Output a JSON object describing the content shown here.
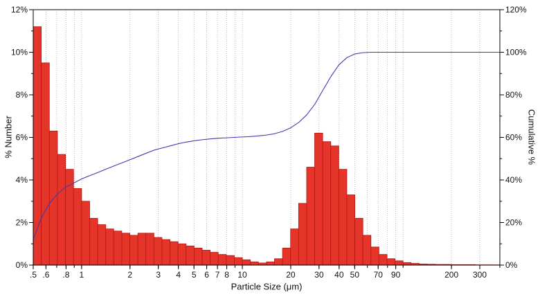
{
  "chart_data": {
    "type": "bar",
    "subtype": "histogram-with-cumulative-line",
    "title": "",
    "xlabel": "Particle Size (μm)",
    "ylabel_left": "% Number",
    "ylabel_right": "Cumulative %",
    "x_scale": "log",
    "xlim": [
      0.5,
      400
    ],
    "ylim_left": [
      0,
      12
    ],
    "ylim_right": [
      0,
      120
    ],
    "grid": {
      "vertical_minor_dotted": true,
      "horizontal": false
    },
    "legend_position": "none",
    "x_ticks": [
      {
        "v": 0.5,
        "label": ".5"
      },
      {
        "v": 0.6,
        "label": ".6"
      },
      {
        "v": 0.8,
        "label": ".8"
      },
      {
        "v": 1,
        "label": "1"
      },
      {
        "v": 2,
        "label": "2"
      },
      {
        "v": 3,
        "label": "3"
      },
      {
        "v": 4,
        "label": "4"
      },
      {
        "v": 5,
        "label": "5"
      },
      {
        "v": 6,
        "label": "6"
      },
      {
        "v": 7,
        "label": "7"
      },
      {
        "v": 8,
        "label": "8"
      },
      {
        "v": 10,
        "label": "10"
      },
      {
        "v": 20,
        "label": "20"
      },
      {
        "v": 30,
        "label": "30"
      },
      {
        "v": 40,
        "label": "40"
      },
      {
        "v": 50,
        "label": "50"
      },
      {
        "v": 70,
        "label": "70"
      },
      {
        "v": 90,
        "label": "90"
      },
      {
        "v": 200,
        "label": "200"
      },
      {
        "v": 300,
        "label": "300"
      }
    ],
    "y_left_ticks": [
      {
        "v": 0,
        "label": "0%"
      },
      {
        "v": 2,
        "label": "2%"
      },
      {
        "v": 4,
        "label": "4%"
      },
      {
        "v": 6,
        "label": "6%"
      },
      {
        "v": 8,
        "label": "8%"
      },
      {
        "v": 10,
        "label": "10%"
      },
      {
        "v": 12,
        "label": "12%"
      }
    ],
    "y_right_ticks": [
      {
        "v": 0,
        "label": "0%"
      },
      {
        "v": 20,
        "label": "20%"
      },
      {
        "v": 40,
        "label": "40%"
      },
      {
        "v": 60,
        "label": "60%"
      },
      {
        "v": 80,
        "label": "80%"
      },
      {
        "v": 100,
        "label": "100%"
      },
      {
        "v": 120,
        "label": "120%"
      }
    ],
    "bars": {
      "series_name": "% Number",
      "bin_edges": [
        0.5,
        0.561,
        0.63,
        0.707,
        0.794,
        0.891,
        1.0,
        1.122,
        1.259,
        1.413,
        1.585,
        1.778,
        1.995,
        2.239,
        2.512,
        2.818,
        3.162,
        3.548,
        3.981,
        4.467,
        5.012,
        5.623,
        6.31,
        7.079,
        7.943,
        8.913,
        10.0,
        11.22,
        12.59,
        14.13,
        15.85,
        17.78,
        19.95,
        22.39,
        25.12,
        28.18,
        31.62,
        35.48,
        39.81,
        44.67,
        50.12,
        56.23,
        63.1,
        70.79,
        79.43,
        89.13,
        100.0,
        112.2,
        125.9,
        141.3,
        158.5,
        177.8,
        199.5,
        223.9,
        251.2,
        281.8,
        316.2,
        354.8,
        398.1
      ],
      "values": [
        11.2,
        9.5,
        6.3,
        5.2,
        4.5,
        3.6,
        3.0,
        2.2,
        1.9,
        1.7,
        1.6,
        1.5,
        1.4,
        1.5,
        1.5,
        1.3,
        1.2,
        1.1,
        1.0,
        0.9,
        0.8,
        0.7,
        0.6,
        0.5,
        0.45,
        0.35,
        0.25,
        0.15,
        0.1,
        0.15,
        0.3,
        0.8,
        1.7,
        2.9,
        4.6,
        6.2,
        5.8,
        5.6,
        4.5,
        3.3,
        2.2,
        1.4,
        0.85,
        0.5,
        0.3,
        0.2,
        0.12,
        0.08,
        0.05,
        0.04,
        0.03,
        0.03,
        0.02,
        0.02,
        0.02,
        0.01,
        0.01,
        0.01
      ]
    },
    "cumulative": {
      "series_name": "Cumulative %",
      "points": [
        [
          0.5,
          12
        ],
        [
          0.56,
          22
        ],
        [
          0.63,
          29
        ],
        [
          0.71,
          33.5
        ],
        [
          0.79,
          36.5
        ],
        [
          0.89,
          38.5
        ],
        [
          1.0,
          40.5
        ],
        [
          1.12,
          42
        ],
        [
          1.26,
          43.5
        ],
        [
          1.41,
          45
        ],
        [
          1.58,
          46.5
        ],
        [
          1.78,
          48
        ],
        [
          2.0,
          49.5
        ],
        [
          2.24,
          51
        ],
        [
          2.51,
          52.5
        ],
        [
          2.82,
          54
        ],
        [
          3.16,
          55
        ],
        [
          3.55,
          56
        ],
        [
          3.98,
          57
        ],
        [
          4.47,
          57.8
        ],
        [
          5.01,
          58.4
        ],
        [
          5.62,
          58.9
        ],
        [
          6.31,
          59.3
        ],
        [
          7.08,
          59.6
        ],
        [
          7.94,
          59.8
        ],
        [
          8.91,
          60.0
        ],
        [
          10.0,
          60.2
        ],
        [
          11.2,
          60.4
        ],
        [
          12.6,
          60.7
        ],
        [
          14.1,
          61.1
        ],
        [
          15.8,
          61.7
        ],
        [
          17.8,
          62.8
        ],
        [
          20.0,
          64.5
        ],
        [
          22.4,
          67.0
        ],
        [
          25.1,
          70.5
        ],
        [
          28.2,
          75.5
        ],
        [
          31.6,
          82.0
        ],
        [
          35.5,
          88.5
        ],
        [
          39.8,
          94.0
        ],
        [
          44.7,
          97.5
        ],
        [
          50.1,
          99.2
        ],
        [
          56.2,
          99.8
        ],
        [
          63.1,
          100.0
        ],
        [
          100.0,
          100.0
        ],
        [
          200.0,
          100.0
        ],
        [
          398.0,
          100.0
        ]
      ]
    },
    "colors": {
      "bar_fill": "#e5352b",
      "bar_edge": "#b5170e",
      "line": "#3c3cb4",
      "grid": "#9a9a9a",
      "axis": "#000000",
      "text": "#111111",
      "background": "#ffffff"
    }
  }
}
